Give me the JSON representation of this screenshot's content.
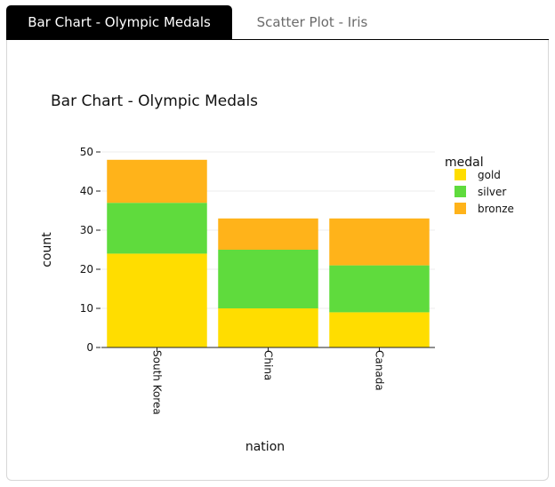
{
  "tabs": [
    {
      "label": "Bar Chart - Olympic Medals",
      "active": true
    },
    {
      "label": "Scatter Plot - Iris",
      "active": false
    }
  ],
  "chart_data": {
    "type": "bar",
    "stacked": true,
    "title": "Bar Chart - Olympic Medals",
    "xlabel": "nation",
    "ylabel": "count",
    "categories": [
      "South Korea",
      "China",
      "Canada"
    ],
    "series": [
      {
        "name": "gold",
        "color": "#FFDD00",
        "values": [
          24,
          10,
          9
        ]
      },
      {
        "name": "silver",
        "color": "#5FDB3D",
        "values": [
          13,
          15,
          12
        ]
      },
      {
        "name": "bronze",
        "color": "#FFB31A",
        "values": [
          11,
          8,
          12
        ]
      }
    ],
    "ylim": [
      0,
      50
    ],
    "yticks": [
      0,
      10,
      20,
      30,
      40,
      50
    ],
    "legend_title": "medal",
    "legend_position": "top-right",
    "grid": true
  }
}
